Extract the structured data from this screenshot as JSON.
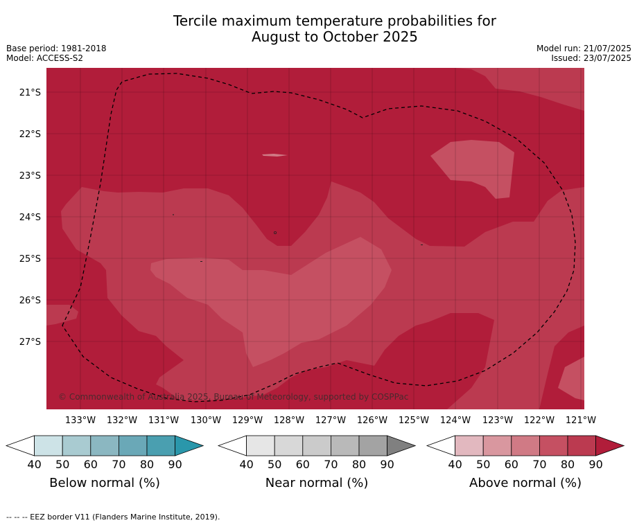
{
  "title_line1": "Tercile maximum temperature probabilities for",
  "title_line2": "August to October 2025",
  "base_period": "Base period: 1981-2018",
  "model": "Model: ACCESS-S2",
  "model_run": "Model run: 21/07/2025",
  "issued": "Issued: 23/07/2025",
  "copyright": "© Commonwealth of Australia 2025, Bureau of Meteorology, supported by COSPPac",
  "lat_labels": [
    "21°S",
    "22°S",
    "23°S",
    "24°S",
    "25°S",
    "26°S",
    "27°S"
  ],
  "lon_labels": [
    "133°W",
    "132°W",
    "131°W",
    "130°W",
    "129°W",
    "128°W",
    "127°W",
    "126°W",
    "125°W",
    "124°W",
    "123°W",
    "122°W",
    "121°W"
  ],
  "colors": {
    "above_80": "#b11d3a",
    "above_70": "#bb3a50",
    "above_60": "#c55062",
    "above_50": "#d07a85"
  },
  "legends": [
    {
      "title": "Below normal (%)",
      "ticks": [
        "40",
        "50",
        "60",
        "70",
        "80",
        "90"
      ],
      "colors": [
        "#ffffff",
        "#cde3e7",
        "#a9cbd1",
        "#8bb7c1",
        "#6aa8b7",
        "#4a9fb0",
        "#2a97ab"
      ]
    },
    {
      "title": "Near normal (%)",
      "ticks": [
        "40",
        "50",
        "60",
        "70",
        "80",
        "90"
      ],
      "colors": [
        "#ffffff",
        "#e6e6e6",
        "#d8d8d8",
        "#cbcbcb",
        "#b9b9b9",
        "#a3a3a3",
        "#808080"
      ]
    },
    {
      "title": "Above normal (%)",
      "ticks": [
        "40",
        "50",
        "60",
        "70",
        "80",
        "90"
      ],
      "colors": [
        "#ffffff",
        "#e2b8bf",
        "#d9979f",
        "#d07a85",
        "#c55062",
        "#bb3a50",
        "#b11d3a"
      ]
    }
  ],
  "footnote": "--  --  -- EEZ border V11 (Flanders Marine Institute, 2019)."
}
